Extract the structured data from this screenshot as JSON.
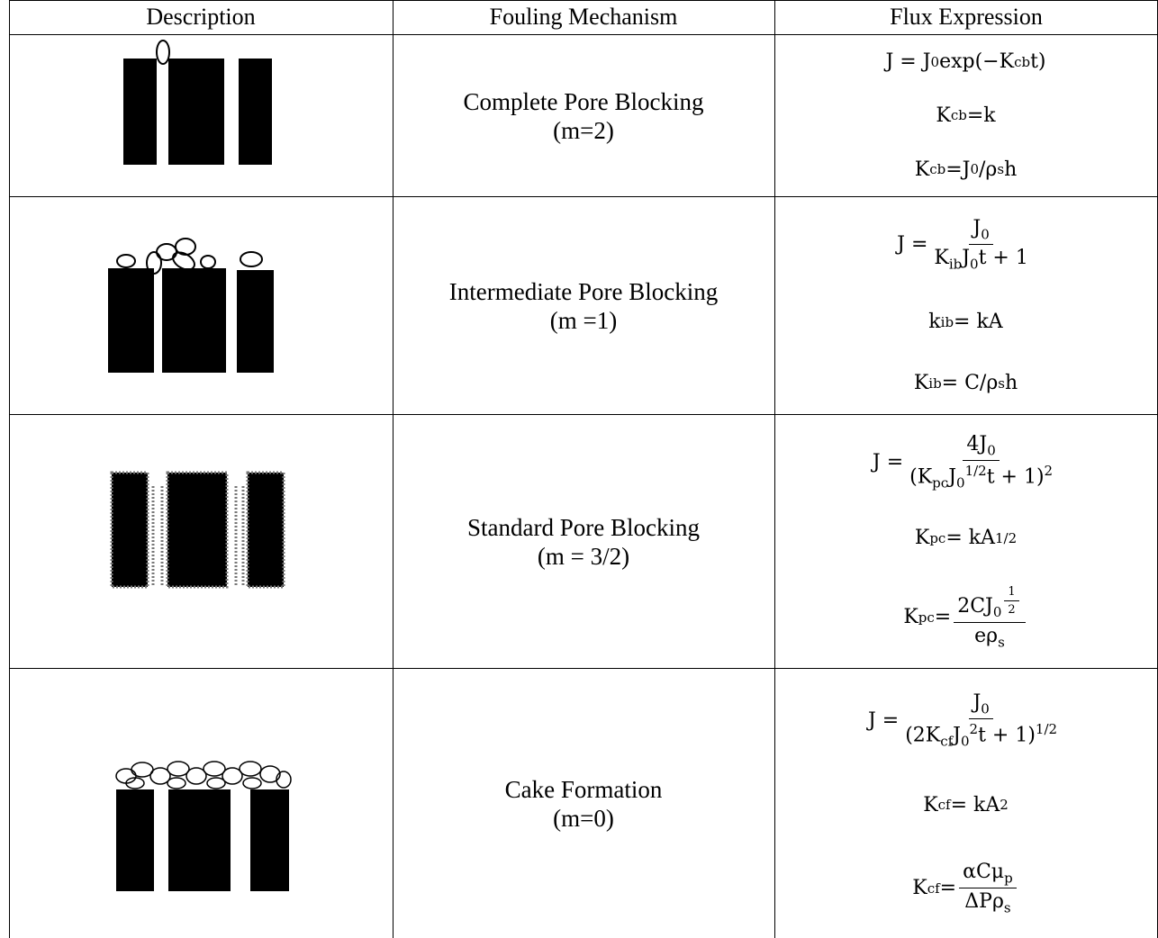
{
  "header": {
    "columns": [
      "Description",
      "Fouling Mechanism",
      "Flux Expression"
    ]
  },
  "rows": [
    {
      "mechanism": "Complete Pore Blocking",
      "m": "(m=2)",
      "formulas": [
        [
          "J = J",
          {
            "sub": "0"
          },
          "exp(−K",
          {
            "sub": "cb"
          },
          "t)"
        ],
        [
          "K",
          {
            "sub": "cb"
          },
          "=k"
        ],
        [
          "K",
          {
            "sub": "cb"
          },
          "=J",
          {
            "sub": "0"
          },
          "/ρ",
          {
            "sub": "s"
          },
          "h"
        ]
      ]
    },
    {
      "mechanism": "Intermediate Pore Blocking",
      "m": "(m =1)",
      "formulas": [
        [
          "J = ",
          {
            "frac": [
              [
                "J",
                {
                  "sub": "0"
                }
              ],
              [
                "K",
                {
                  "sub": "ib"
                },
                "J",
                {
                  "sub": "0"
                },
                "t + 1"
              ]
            ]
          }
        ],
        [
          "k",
          {
            "sub": "ib"
          },
          " = kA"
        ],
        [
          "K",
          {
            "sub": "ib"
          },
          " = C/ρ",
          {
            "sub": "s"
          },
          "h"
        ]
      ]
    },
    {
      "mechanism": "Standard Pore Blocking",
      "m": "(m = 3/2)",
      "formulas": [
        [
          "J = ",
          {
            "frac": [
              [
                "4J",
                {
                  "sub": "0"
                }
              ],
              [
                "(K",
                {
                  "sub": "pc"
                },
                "J",
                {
                  "sub": "0"
                },
                {
                  "sup": "1/2"
                },
                "t + 1)",
                {
                  "sup": "2"
                }
              ]
            ]
          }
        ],
        [
          "K",
          {
            "sub": "pc"
          },
          " = kA",
          {
            "sup": "1/2"
          }
        ],
        [
          "K",
          {
            "sub": "pc"
          },
          " = ",
          {
            "frac": [
              [
                "2CJ",
                {
                  "sub": "0"
                },
                {
                  "sup": [
                    {
                      "frac": [
                        [
                          "1"
                        ],
                        [
                          "2"
                        ]
                      ]
                    }
                  ]
                }
              ],
              [
                "eρ",
                {
                  "sub": "s"
                }
              ]
            ]
          }
        ]
      ]
    },
    {
      "mechanism": "Cake Formation",
      "m": "(m=0)",
      "formulas": [
        [
          "J = ",
          {
            "frac": [
              [
                "J",
                {
                  "sub": "0"
                }
              ],
              [
                "(2K",
                {
                  "sub": "cf"
                },
                "J",
                {
                  "sub": "0"
                },
                {
                  "sup": "2"
                },
                "t + 1)",
                {
                  "sup": "1/2"
                }
              ]
            ]
          }
        ],
        [
          "K",
          {
            "sub": "cf"
          },
          " = kA",
          {
            "sup": "2"
          }
        ],
        [
          "K",
          {
            "sub": "cf"
          },
          " = ",
          {
            "frac": [
              [
                "αCμ",
                {
                  "sub": "p"
                }
              ],
              [
                "ΔPρ",
                {
                  "sub": "s"
                }
              ]
            ]
          }
        ]
      ]
    }
  ]
}
